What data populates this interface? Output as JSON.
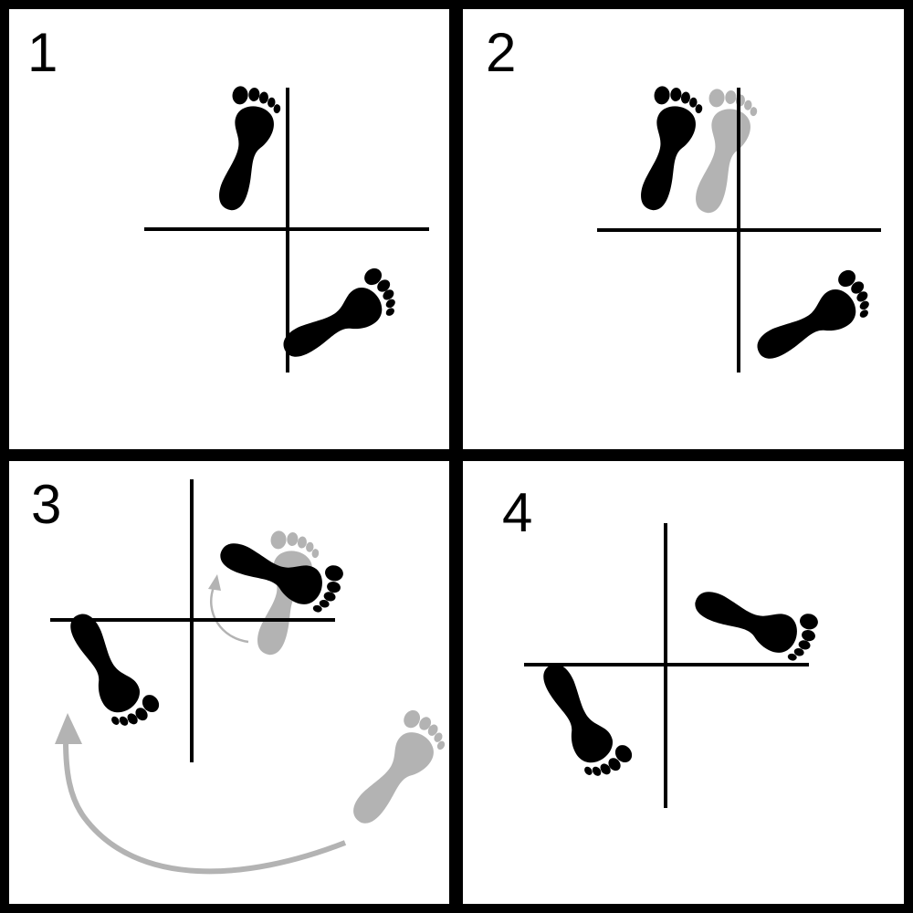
{
  "colors": {
    "ink": "#000000",
    "ghost": "#b3b3b3",
    "paper": "#ffffff"
  },
  "icons": [
    "footprint-icon",
    "curved-arrow-icon"
  ],
  "panels": [
    {
      "step": "1"
    },
    {
      "step": "2"
    },
    {
      "step": "3"
    },
    {
      "step": "4"
    }
  ]
}
